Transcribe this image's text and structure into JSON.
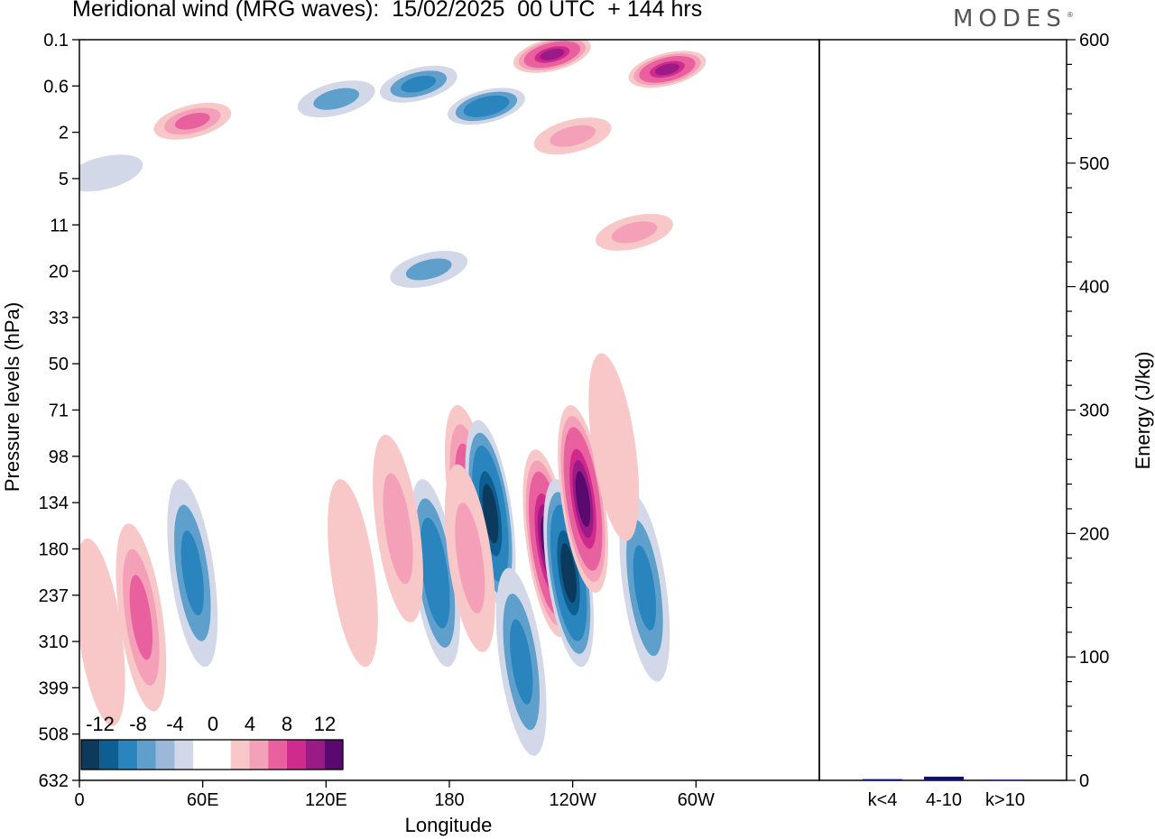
{
  "title": "Meridional wind (MRG waves):  15/02/2025  00 UTC  + 144 hrs",
  "logo": "MODES",
  "logo_mark": "®",
  "colors": {
    "neg": [
      "#0b3a5c",
      "#0d5f92",
      "#2a84bd",
      "#5e9fcb",
      "#9bb8d8",
      "#d3d8e8"
    ],
    "pos": [
      "#f8c8c8",
      "#f3a0b8",
      "#e8609e",
      "#d02a8e",
      "#9a1a86",
      "#5a0a6e"
    ],
    "zero": "#ffffff",
    "bar": "#101070"
  },
  "chart_data": [
    {
      "type": "heatmap",
      "xlabel": "Longitude",
      "ylabel": "Pressure levels (hPa)",
      "x_ticks": [
        "0",
        "60E",
        "120E",
        "180",
        "120W",
        "60W"
      ],
      "y_ticks": [
        "0.1",
        "0.6",
        "2",
        "5",
        "11",
        "20",
        "33",
        "50",
        "71",
        "98",
        "134",
        "180",
        "237",
        "310",
        "399",
        "508",
        "632"
      ],
      "colorbar": {
        "labels": [
          "-12",
          "-8",
          "-4",
          "0",
          "4",
          "8",
          "12"
        ],
        "levels": [
          -14,
          -12,
          -10,
          -8,
          -6,
          -4,
          -2,
          2,
          4,
          6,
          8,
          10,
          12,
          14
        ]
      },
      "features": [
        {
          "lon": 230,
          "lev": 0.02,
          "v": 12
        },
        {
          "lon": 286,
          "lev": 0.04,
          "v": 12
        },
        {
          "lon": 165,
          "lev": 0.06,
          "v": -6
        },
        {
          "lon": 198,
          "lev": 0.09,
          "v": -8
        },
        {
          "lon": 55,
          "lev": 0.11,
          "v": 6
        },
        {
          "lon": 240,
          "lev": 0.13,
          "v": 5
        },
        {
          "lon": 125,
          "lev": 0.08,
          "v": -4
        },
        {
          "lon": 270,
          "lev": 0.26,
          "v": 4
        },
        {
          "lon": 12,
          "lev": 0.18,
          "v": -3
        },
        {
          "lon": 170,
          "lev": 0.31,
          "v": -4
        },
        {
          "lon": 190,
          "lev": 0.62,
          "v": 8
        },
        {
          "lon": 200,
          "lev": 0.64,
          "v": -12
        },
        {
          "lon": 228,
          "lev": 0.68,
          "v": 14
        },
        {
          "lon": 238,
          "lev": 0.72,
          "v": -13
        },
        {
          "lon": 245,
          "lev": 0.62,
          "v": 14
        },
        {
          "lon": 173,
          "lev": 0.72,
          "v": -8
        },
        {
          "lon": 190,
          "lev": 0.7,
          "v": 5
        },
        {
          "lon": 155,
          "lev": 0.66,
          "v": 5
        },
        {
          "lon": 133,
          "lev": 0.72,
          "v": 3
        },
        {
          "lon": 275,
          "lev": 0.74,
          "v": -6
        },
        {
          "lon": 55,
          "lev": 0.72,
          "v": -7
        },
        {
          "lon": 30,
          "lev": 0.78,
          "v": 6
        },
        {
          "lon": 10,
          "lev": 0.8,
          "v": 3
        },
        {
          "lon": 215,
          "lev": 0.84,
          "v": -6
        },
        {
          "lon": 260,
          "lev": 0.55,
          "v": 3
        }
      ]
    },
    {
      "type": "bar",
      "categories": [
        "k<4",
        "4-10",
        "k>10"
      ],
      "values": [
        1,
        3,
        0.5
      ],
      "ylabel": "Energy (J/kg)",
      "ylim": [
        0,
        600
      ],
      "y_ticks": [
        "0",
        "100",
        "200",
        "300",
        "400",
        "500",
        "600"
      ]
    }
  ]
}
